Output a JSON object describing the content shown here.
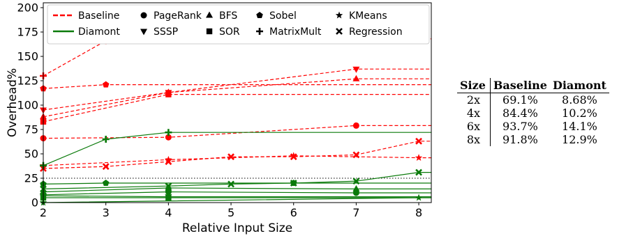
{
  "chart_data": {
    "type": "line",
    "xlabel": "Relative Input Size",
    "ylabel": "Overhead%",
    "xlim": [
      2,
      8.2
    ],
    "ylim": [
      0,
      205
    ],
    "xticks": [
      2,
      3,
      4,
      5,
      6,
      7,
      8
    ],
    "yticks": [
      0,
      25,
      50,
      75,
      100,
      125,
      150,
      175,
      200
    ],
    "threshold_line": 25,
    "legend_position": "top",
    "colors": {
      "baseline": "#ff0000",
      "diamont": "#0a7a0a"
    },
    "legend": {
      "baseline": "Baseline",
      "diamont": "Diamont",
      "benchmarks": [
        {
          "name": "PageRank",
          "marker": "circle"
        },
        {
          "name": "SSSP",
          "marker": "triangle-down"
        },
        {
          "name": "BFS",
          "marker": "triangle-up"
        },
        {
          "name": "SOR",
          "marker": "square"
        },
        {
          "name": "Sobel",
          "marker": "pentagon"
        },
        {
          "name": "MatrixMult",
          "marker": "plus"
        },
        {
          "name": "KMeans",
          "marker": "star"
        },
        {
          "name": "Regression",
          "marker": "x"
        }
      ]
    },
    "series": [
      {
        "group": "baseline",
        "benchmark": "PageRank",
        "x": [
          2,
          4,
          7
        ],
        "y": [
          66,
          67,
          79
        ]
      },
      {
        "group": "baseline",
        "benchmark": "SSSP",
        "x": [
          2,
          4,
          7
        ],
        "y": [
          95,
          113,
          137
        ]
      },
      {
        "group": "baseline",
        "benchmark": "BFS",
        "x": [
          2,
          4,
          7
        ],
        "y": [
          88,
          113,
          127
        ]
      },
      {
        "group": "baseline",
        "benchmark": "SOR",
        "x": [
          2,
          4
        ],
        "y": [
          83,
          111
        ]
      },
      {
        "group": "baseline",
        "benchmark": "Sobel",
        "x": [
          2,
          3
        ],
        "y": [
          117,
          121
        ]
      },
      {
        "group": "baseline",
        "benchmark": "MatrixMult",
        "x": [
          2,
          3,
          4
        ],
        "y": [
          130,
          166,
          168
        ]
      },
      {
        "group": "baseline",
        "benchmark": "KMeans",
        "x": [
          2,
          4,
          6,
          8
        ],
        "y": [
          38,
          44,
          48,
          46
        ]
      },
      {
        "group": "baseline",
        "benchmark": "Regression",
        "x": [
          2,
          3,
          4,
          5,
          6,
          7,
          8
        ],
        "y": [
          35,
          37,
          42,
          47,
          47,
          49,
          63
        ]
      },
      {
        "group": "diamont",
        "benchmark": "MatrixMult",
        "x": [
          2,
          3,
          4
        ],
        "y": [
          38,
          65,
          72
        ]
      },
      {
        "group": "diamont",
        "benchmark": "Sobel",
        "x": [
          2,
          3,
          6
        ],
        "y": [
          19,
          20,
          20
        ]
      },
      {
        "group": "diamont",
        "benchmark": "Regression",
        "x": [
          2,
          4,
          5,
          6,
          7,
          8
        ],
        "y": [
          14,
          17,
          19,
          20,
          22,
          31
        ]
      },
      {
        "group": "diamont",
        "benchmark": "BFS",
        "x": [
          2,
          4,
          7
        ],
        "y": [
          11,
          15,
          14
        ]
      },
      {
        "group": "diamont",
        "benchmark": "PageRank",
        "x": [
          2,
          4,
          7
        ],
        "y": [
          8,
          11,
          10
        ]
      },
      {
        "group": "diamont",
        "benchmark": "SOR",
        "x": [
          2,
          4
        ],
        "y": [
          5,
          5
        ]
      },
      {
        "group": "diamont",
        "benchmark": "SSSP",
        "x": [
          2,
          4
        ],
        "y": [
          7,
          6
        ]
      },
      {
        "group": "diamont",
        "benchmark": "KMeans",
        "x": [
          2,
          8
        ],
        "y": [
          0,
          5
        ]
      }
    ]
  },
  "table": {
    "headers": [
      "Size",
      "Baseline",
      "Diamont"
    ],
    "rows": [
      [
        "2x",
        "69.1%",
        "8.68%"
      ],
      [
        "4x",
        "84.4%",
        "10.2%"
      ],
      [
        "6x",
        "93.7%",
        "14.1%"
      ],
      [
        "8x",
        "91.8%",
        "12.9%"
      ]
    ]
  }
}
